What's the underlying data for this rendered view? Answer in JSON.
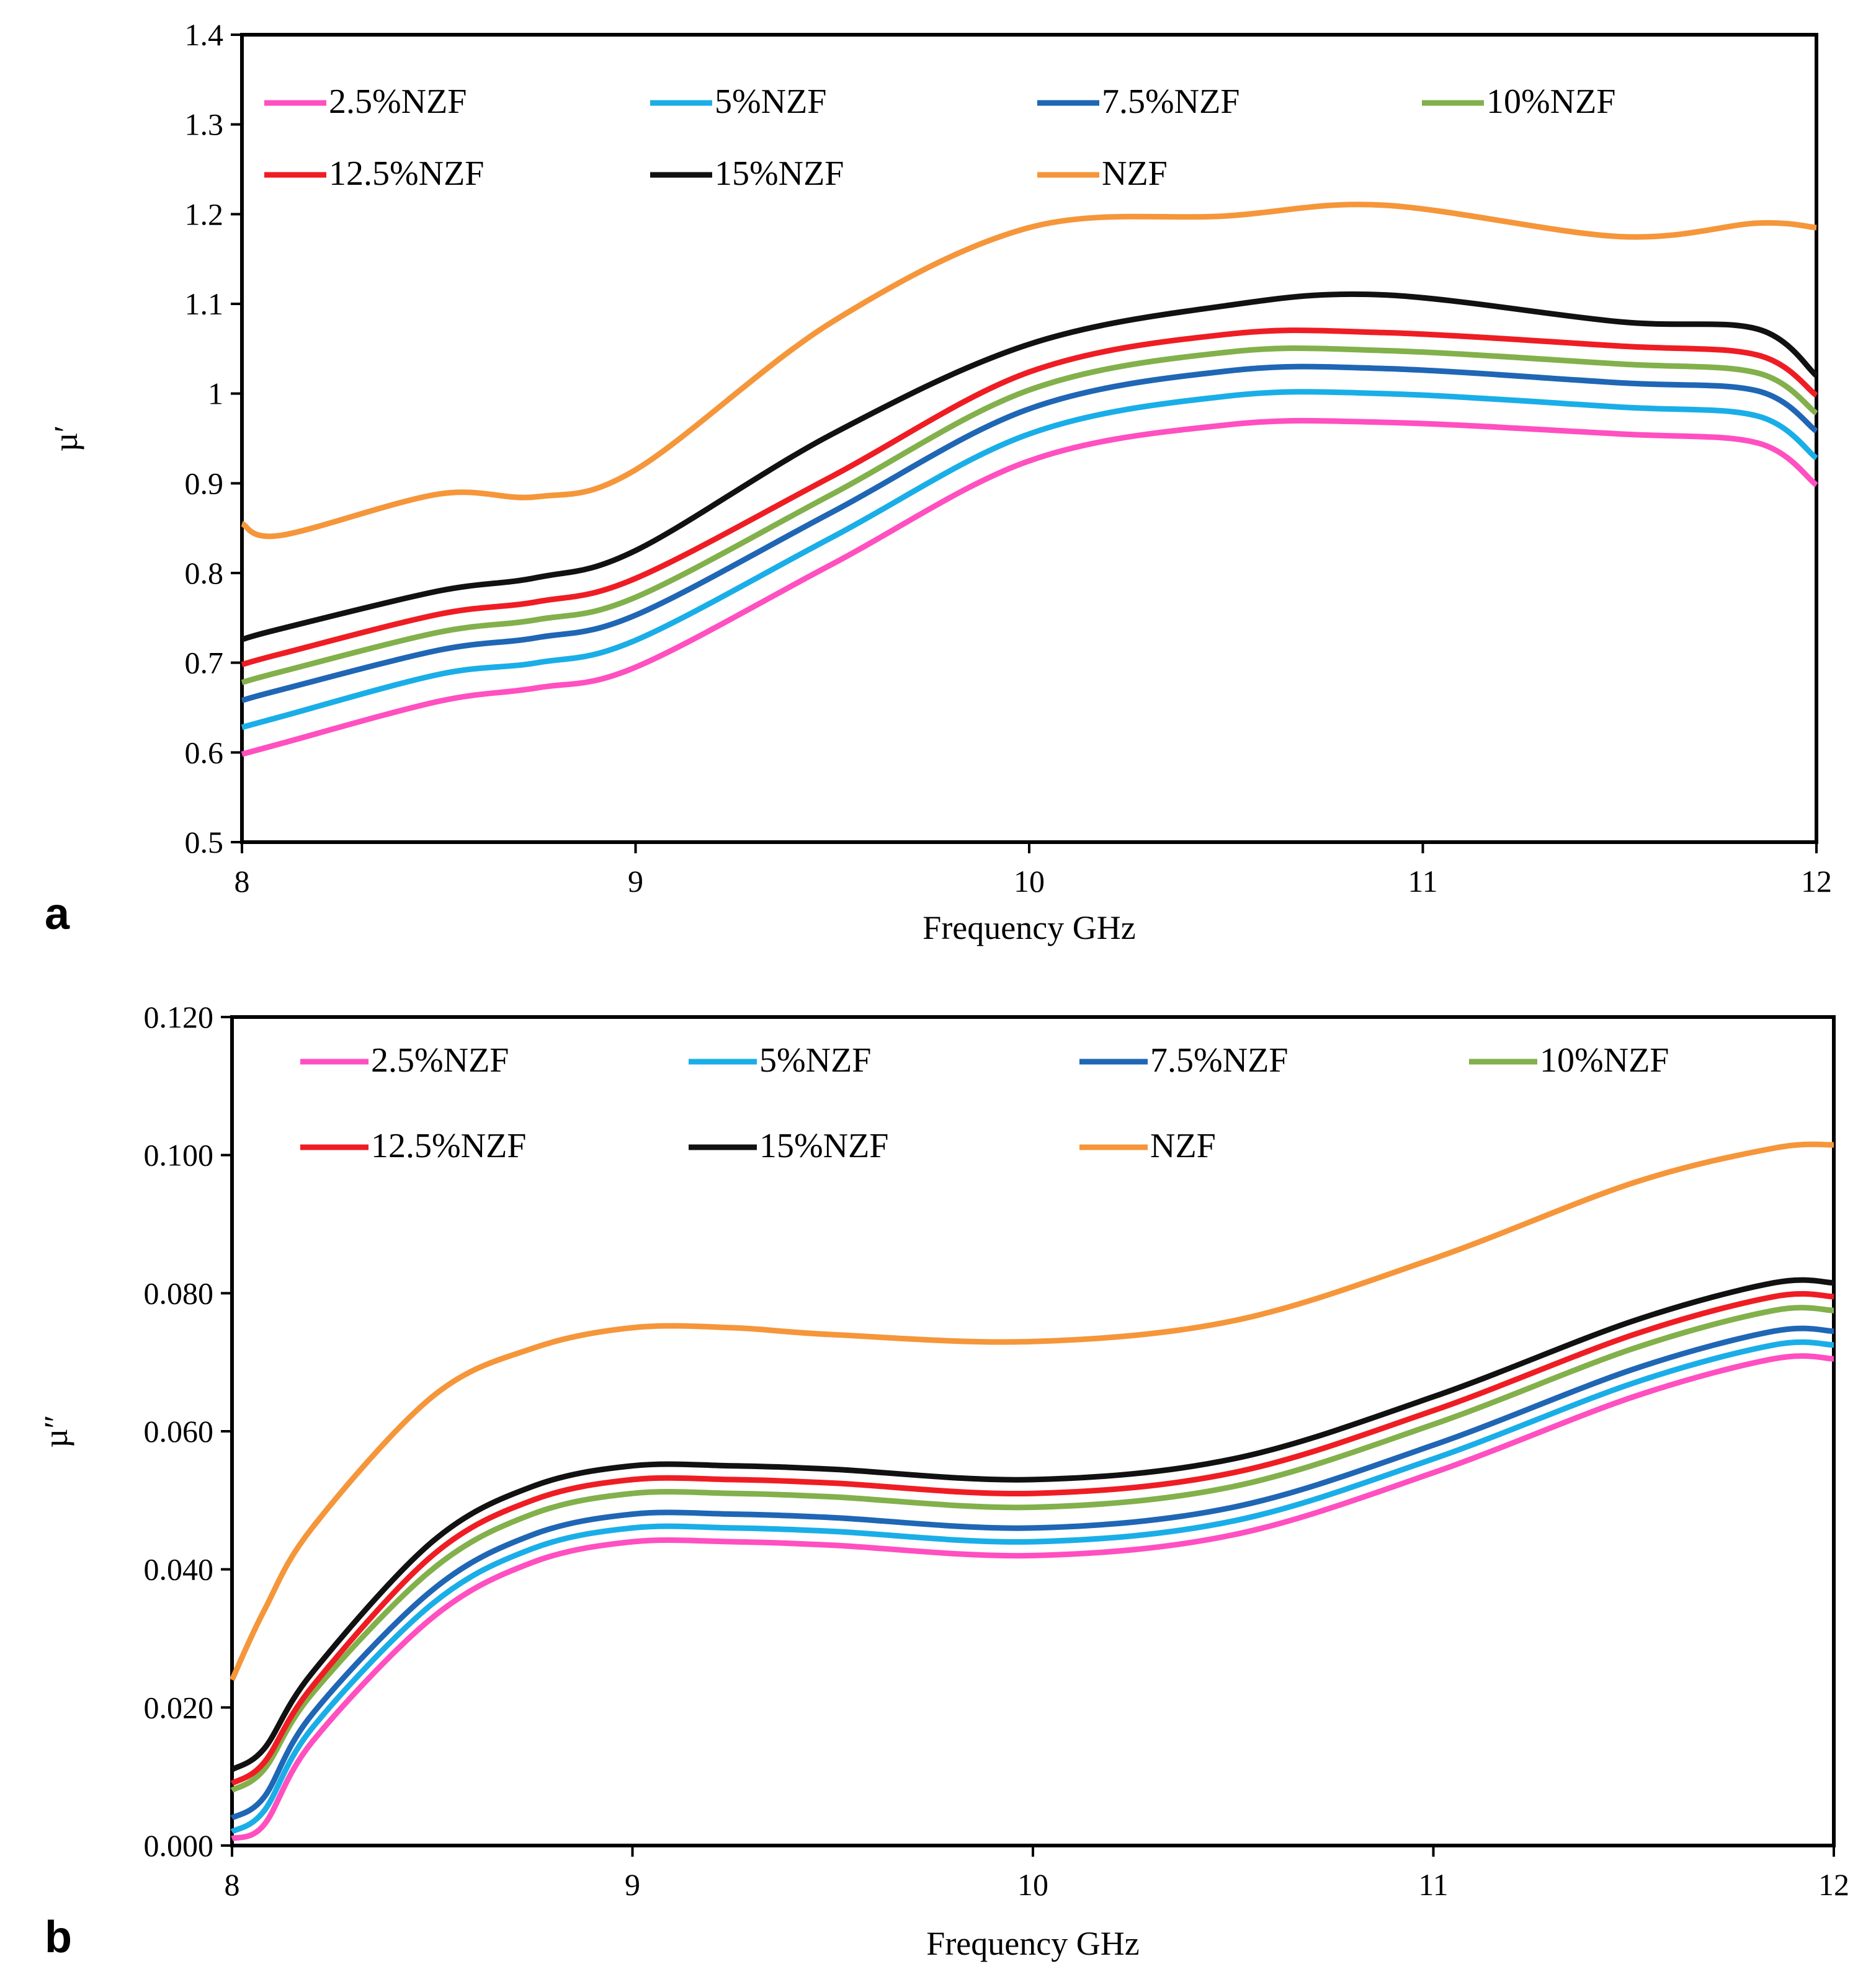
{
  "chart_data": [
    {
      "type": "line",
      "panel_label": "a",
      "title": "",
      "xlabel": "Frequency  GHz",
      "ylabel": "µ′",
      "xlim": [
        8,
        12
      ],
      "ylim": [
        0.5,
        1.4
      ],
      "x_ticks": [
        8,
        9,
        10,
        11,
        12
      ],
      "x_tick_labels": [
        "8",
        "9",
        "10",
        "11",
        "12"
      ],
      "y_ticks": [
        0.5,
        0.6,
        0.7,
        0.8,
        0.9,
        1.0,
        1.1,
        1.2,
        1.3,
        1.4
      ],
      "y_tick_labels": [
        "0.5",
        "0.6",
        "0.7",
        "0.8",
        "0.9",
        "1",
        "1.1",
        "1.2",
        "1.3",
        "1.4"
      ],
      "grid": false,
      "legend_position": "top",
      "x": [
        8.0,
        8.1,
        8.5,
        8.75,
        9.0,
        9.5,
        10.0,
        10.5,
        10.9,
        11.5,
        11.85,
        12.0
      ],
      "series": [
        {
          "name": "2.5%NZF",
          "color": "#ff4fc0",
          "values": [
            0.598,
            0.61,
            0.657,
            0.672,
            0.695,
            0.81,
            0.925,
            0.965,
            0.968,
            0.955,
            0.945,
            0.898
          ]
        },
        {
          "name": "5%NZF",
          "color": "#1aaee8",
          "values": [
            0.628,
            0.64,
            0.687,
            0.7,
            0.725,
            0.84,
            0.955,
            0.997,
            1.0,
            0.985,
            0.975,
            0.928
          ]
        },
        {
          "name": "7.5%NZF",
          "color": "#1f66b5",
          "values": [
            0.658,
            0.67,
            0.714,
            0.728,
            0.753,
            0.868,
            0.983,
            1.025,
            1.028,
            1.012,
            1.003,
            0.958
          ]
        },
        {
          "name": "10%NZF",
          "color": "#82b04b",
          "values": [
            0.678,
            0.69,
            0.734,
            0.748,
            0.773,
            0.888,
            1.004,
            1.046,
            1.048,
            1.033,
            1.023,
            0.978
          ]
        },
        {
          "name": "12.5%NZF",
          "color": "#ee1d23",
          "values": [
            0.698,
            0.71,
            0.754,
            0.768,
            0.794,
            0.908,
            1.024,
            1.066,
            1.068,
            1.053,
            1.043,
            0.998
          ]
        },
        {
          "name": "15%NZF",
          "color": "#111111",
          "values": [
            0.726,
            0.738,
            0.78,
            0.795,
            0.825,
            0.955,
            1.055,
            1.098,
            1.11,
            1.08,
            1.072,
            1.02
          ]
        },
        {
          "name": "NZF",
          "color": "#f5963a",
          "values": [
            0.855,
            0.842,
            0.888,
            0.885,
            0.915,
            1.08,
            1.185,
            1.198,
            1.21,
            1.175,
            1.19,
            1.185
          ]
        }
      ]
    },
    {
      "type": "line",
      "panel_label": "b",
      "title": "",
      "xlabel": "Frequency  GHz",
      "ylabel": "µ″",
      "xlim": [
        8,
        12
      ],
      "ylim": [
        0,
        0.12
      ],
      "x_ticks": [
        8,
        9,
        10,
        11,
        12
      ],
      "x_tick_labels": [
        "8",
        "9",
        "10",
        "11",
        "12"
      ],
      "y_ticks": [
        0,
        0.02,
        0.04,
        0.06,
        0.08,
        0.1,
        0.12
      ],
      "y_tick_labels": [
        "0.000",
        "0.020",
        "0.040",
        "0.060",
        "0.080",
        "0.100",
        "0.120"
      ],
      "grid": false,
      "legend_position": "top",
      "x": [
        8.0,
        8.08,
        8.2,
        8.5,
        8.75,
        9.0,
        9.25,
        9.5,
        10.0,
        10.5,
        11.0,
        11.5,
        11.85,
        12.0
      ],
      "series": [
        {
          "name": "2.5%NZF",
          "color": "#ff4fc0",
          "values": [
            0.001,
            0.003,
            0.015,
            0.033,
            0.041,
            0.044,
            0.044,
            0.0435,
            0.042,
            0.045,
            0.054,
            0.065,
            0.0705,
            0.0705
          ]
        },
        {
          "name": "5%NZF",
          "color": "#1aaee8",
          "values": [
            0.002,
            0.005,
            0.017,
            0.035,
            0.043,
            0.046,
            0.046,
            0.0455,
            0.044,
            0.047,
            0.056,
            0.067,
            0.0725,
            0.0725
          ]
        },
        {
          "name": "7.5%NZF",
          "color": "#1f66b5",
          "values": [
            0.004,
            0.007,
            0.019,
            0.037,
            0.045,
            0.048,
            0.048,
            0.0475,
            0.046,
            0.049,
            0.058,
            0.069,
            0.0745,
            0.0745
          ]
        },
        {
          "name": "10%NZF",
          "color": "#82b04b",
          "values": [
            0.008,
            0.011,
            0.022,
            0.04,
            0.048,
            0.051,
            0.051,
            0.0505,
            0.049,
            0.052,
            0.061,
            0.072,
            0.0775,
            0.0775
          ]
        },
        {
          "name": "12.5%NZF",
          "color": "#ee1d23",
          "values": [
            0.009,
            0.012,
            0.023,
            0.042,
            0.05,
            0.053,
            0.053,
            0.0525,
            0.051,
            0.054,
            0.063,
            0.074,
            0.0795,
            0.0795
          ]
        },
        {
          "name": "15%NZF",
          "color": "#111111",
          "values": [
            0.011,
            0.014,
            0.025,
            0.044,
            0.052,
            0.055,
            0.055,
            0.0545,
            0.053,
            0.056,
            0.065,
            0.076,
            0.0815,
            0.0815
          ]
        },
        {
          "name": "NZF",
          "color": "#f5963a",
          "values": [
            0.024,
            0.034,
            0.046,
            0.065,
            0.072,
            0.075,
            0.075,
            0.074,
            0.073,
            0.076,
            0.085,
            0.096,
            0.101,
            0.1015
          ]
        }
      ]
    }
  ]
}
